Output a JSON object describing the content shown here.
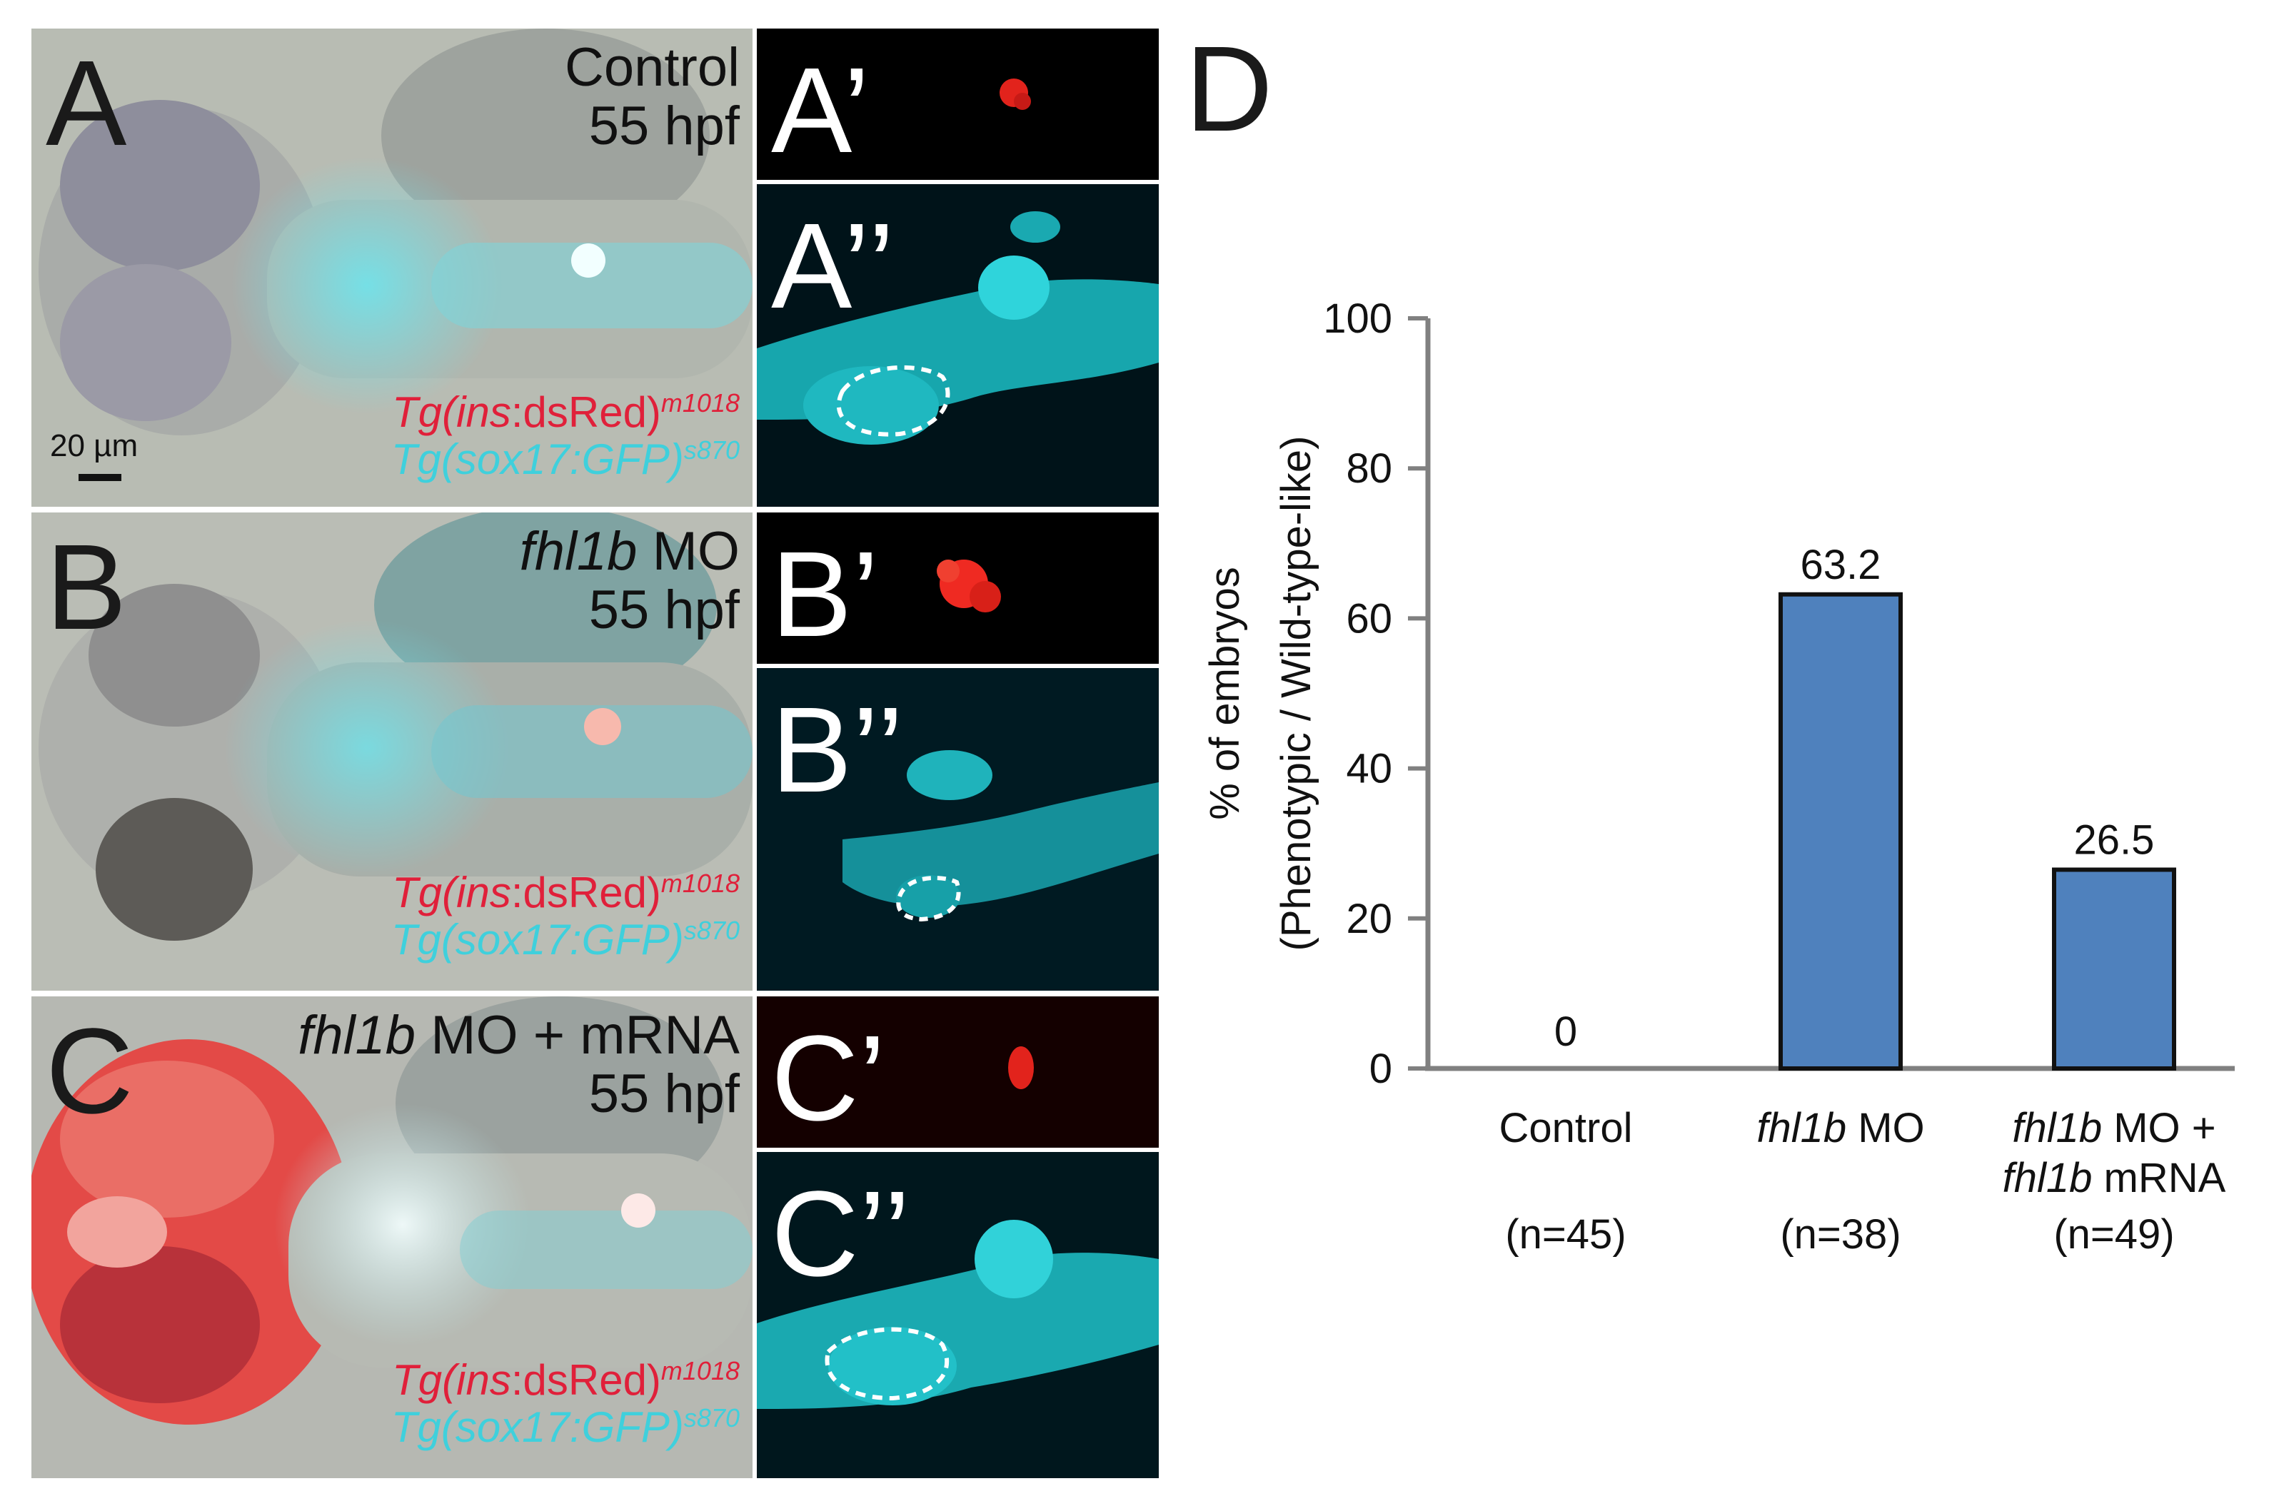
{
  "figure": {
    "panel_letters": {
      "A": "A",
      "A1": "A’",
      "A2": "A’’",
      "B": "B",
      "B1": "B’",
      "B2": "B’’",
      "C": "C",
      "C1": "C’",
      "C2": "C’’",
      "D": "D"
    },
    "panel_a": {
      "condition": "Control",
      "time": "55 hpf"
    },
    "panel_b": {
      "condition_italic": "fhl1b",
      "condition_rest": " MO",
      "time": "55 hpf"
    },
    "panel_c": {
      "condition_italic": "fhl1b",
      "condition_rest": " MO + mRNA",
      "time": "55 hpf"
    },
    "transgenes": {
      "ins_prefix": "Tg(",
      "ins_gene": "ins",
      "ins_suffix": ":dsRed)",
      "ins_allele": "m1018",
      "sox_label": "Tg(sox17:GFP)",
      "sox_allele": "s870"
    },
    "scale_bar": "20 µm",
    "colors": {
      "dsRed": "#e0203a",
      "gfp": "#3fd0dc",
      "bar": "#4f81bd"
    }
  },
  "chart_data": {
    "type": "bar",
    "ylabel_line1": "% of embryos",
    "ylabel_line2": "(Phenotypic / Wild-type-like)",
    "ylim": [
      0,
      100
    ],
    "yticks": [
      0,
      20,
      40,
      60,
      80,
      100
    ],
    "categories": [
      {
        "lines": [
          "Control"
        ],
        "italic": [
          [
            ""
          ]
        ],
        "n": "(n=45)"
      },
      {
        "lines": [
          "fhl1b MO"
        ],
        "n": "(n=38)"
      },
      {
        "lines": [
          "fhl1b MO +",
          "fhl1b mRNA"
        ],
        "n": "(n=49)"
      }
    ],
    "values": [
      0,
      63.2,
      26.5
    ],
    "value_labels": [
      "0",
      "63.2",
      "26.5"
    ]
  }
}
